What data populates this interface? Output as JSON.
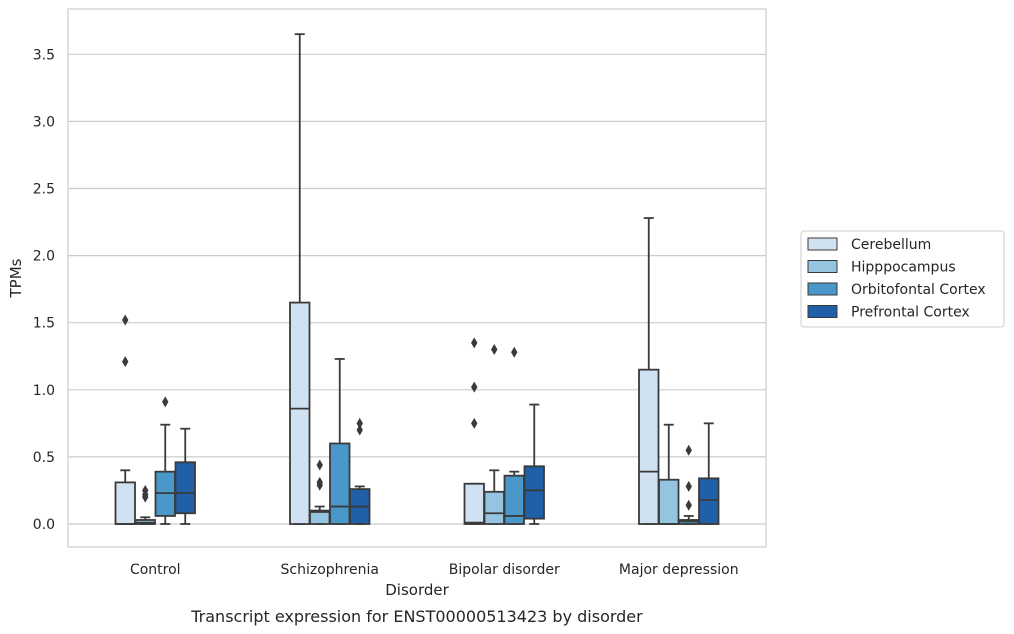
{
  "caption": "Transcript expression for ENST00000513423 by disorder",
  "chart_data": {
    "type": "box",
    "title": "",
    "xlabel": "Disorder",
    "ylabel": "TPMs",
    "ylim": [
      -0.18,
      3.85
    ],
    "yticks": [
      "0.0",
      "0.5",
      "1.0",
      "1.5",
      "2.0",
      "2.5",
      "3.0",
      "3.5"
    ],
    "categories": [
      "Control",
      "Schizophrenia",
      "Bipolar disorder",
      "Major depression"
    ],
    "grid": "horizontal",
    "legend_position": "right",
    "series": [
      {
        "name": "Cerebellum",
        "color": "#d0e1f2",
        "boxes": [
          {
            "q1": 0.0,
            "median": 0.0,
            "q3": 0.31,
            "wlow": 0.0,
            "whigh": 0.4,
            "outliers": [
              1.21,
              1.52
            ]
          },
          {
            "q1": 0.0,
            "median": 0.86,
            "q3": 1.65,
            "wlow": 0.0,
            "whigh": 3.65,
            "outliers": []
          },
          {
            "q1": 0.0,
            "median": 0.01,
            "q3": 0.3,
            "wlow": 0.0,
            "whigh": 0.3,
            "outliers": [
              0.75,
              1.02,
              1.35
            ]
          },
          {
            "q1": 0.0,
            "median": 0.39,
            "q3": 1.15,
            "wlow": 0.0,
            "whigh": 2.28,
            "outliers": []
          }
        ]
      },
      {
        "name": "Hipppocampus",
        "color": "#94c4df",
        "boxes": [
          {
            "q1": 0.0,
            "median": 0.01,
            "q3": 0.03,
            "wlow": 0.0,
            "whigh": 0.05,
            "outliers": [
              0.2,
              0.22,
              0.25
            ]
          },
          {
            "q1": 0.0,
            "median": 0.09,
            "q3": 0.1,
            "wlow": 0.0,
            "whigh": 0.13,
            "outliers": [
              0.29,
              0.31,
              0.44
            ]
          },
          {
            "q1": 0.0,
            "median": 0.08,
            "q3": 0.24,
            "wlow": 0.0,
            "whigh": 0.4,
            "outliers": [
              1.3
            ]
          },
          {
            "q1": 0.0,
            "median": 0.0,
            "q3": 0.33,
            "wlow": 0.0,
            "whigh": 0.74,
            "outliers": []
          }
        ]
      },
      {
        "name": "Orbitofontal Cortex",
        "color": "#4a98c9",
        "boxes": [
          {
            "q1": 0.06,
            "median": 0.23,
            "q3": 0.39,
            "wlow": 0.0,
            "whigh": 0.74,
            "outliers": [
              0.91
            ]
          },
          {
            "q1": 0.0,
            "median": 0.13,
            "q3": 0.6,
            "wlow": 0.0,
            "whigh": 1.23,
            "outliers": []
          },
          {
            "q1": 0.0,
            "median": 0.06,
            "q3": 0.36,
            "wlow": 0.0,
            "whigh": 0.39,
            "outliers": [
              1.28
            ]
          },
          {
            "q1": 0.0,
            "median": 0.02,
            "q3": 0.03,
            "wlow": 0.0,
            "whigh": 0.06,
            "outliers": [
              0.14,
              0.28,
              0.55
            ]
          }
        ]
      },
      {
        "name": "Prefrontal Cortex",
        "color": "#2060a7",
        "boxes": [
          {
            "q1": 0.08,
            "median": 0.23,
            "q3": 0.46,
            "wlow": 0.0,
            "whigh": 0.71,
            "outliers": []
          },
          {
            "q1": 0.0,
            "median": 0.13,
            "q3": 0.26,
            "wlow": 0.0,
            "whigh": 0.28,
            "outliers": [
              0.7,
              0.75
            ]
          },
          {
            "q1": 0.04,
            "median": 0.25,
            "q3": 0.43,
            "wlow": 0.0,
            "whigh": 0.89,
            "outliers": []
          },
          {
            "q1": 0.0,
            "median": 0.18,
            "q3": 0.34,
            "wlow": 0.0,
            "whigh": 0.75,
            "outliers": []
          }
        ]
      }
    ]
  }
}
